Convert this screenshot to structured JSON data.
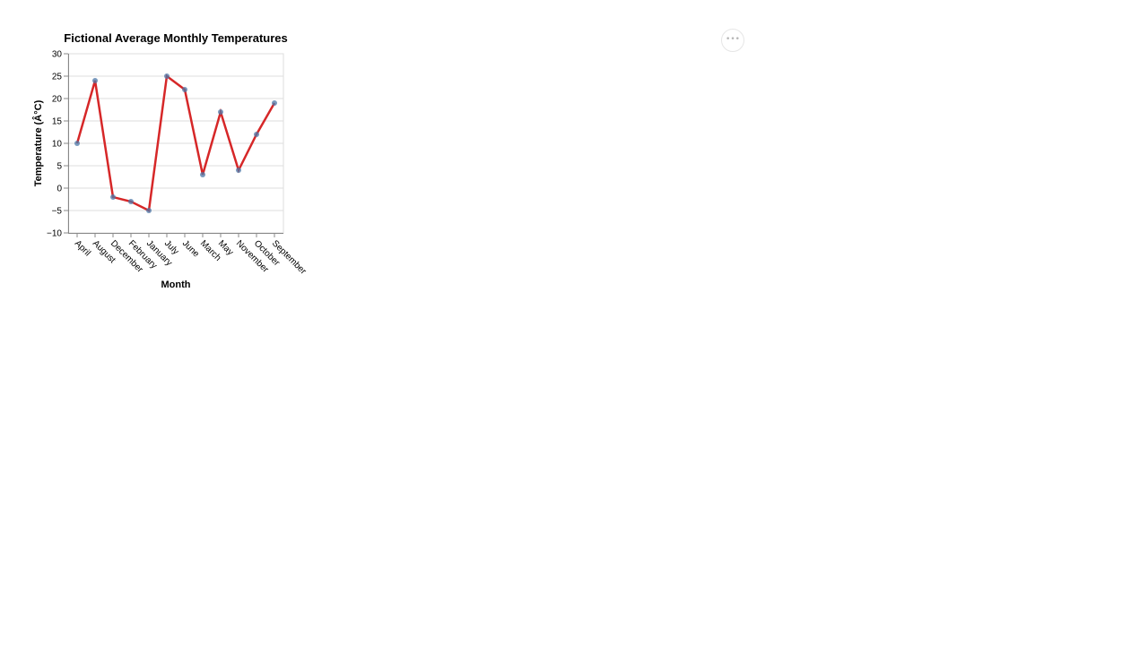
{
  "actions_menu": {
    "icon": "more-horizontal-icon",
    "glyph": "•••"
  },
  "chart_data": {
    "type": "line",
    "title": "Fictional Average Monthly Temperatures",
    "xlabel": "Month",
    "ylabel": "Temperature (Â°C)",
    "categories": [
      "April",
      "August",
      "December",
      "February",
      "January",
      "July",
      "June",
      "March",
      "May",
      "November",
      "October",
      "September"
    ],
    "series": [
      {
        "values": [
          10,
          24,
          -2,
          -3,
          -5,
          25,
          22,
          3,
          17,
          4,
          12,
          19
        ],
        "color": "#d62728",
        "point_color": "#4c78a8"
      }
    ],
    "ylim": [
      -10,
      30
    ],
    "yticks": [
      "−10",
      "−5",
      "0",
      "5",
      "10",
      "15",
      "20",
      "25",
      "30"
    ],
    "ytick_values": [
      -10,
      -5,
      0,
      5,
      10,
      15,
      20,
      25,
      30
    ],
    "grid": true,
    "legend": "none"
  }
}
